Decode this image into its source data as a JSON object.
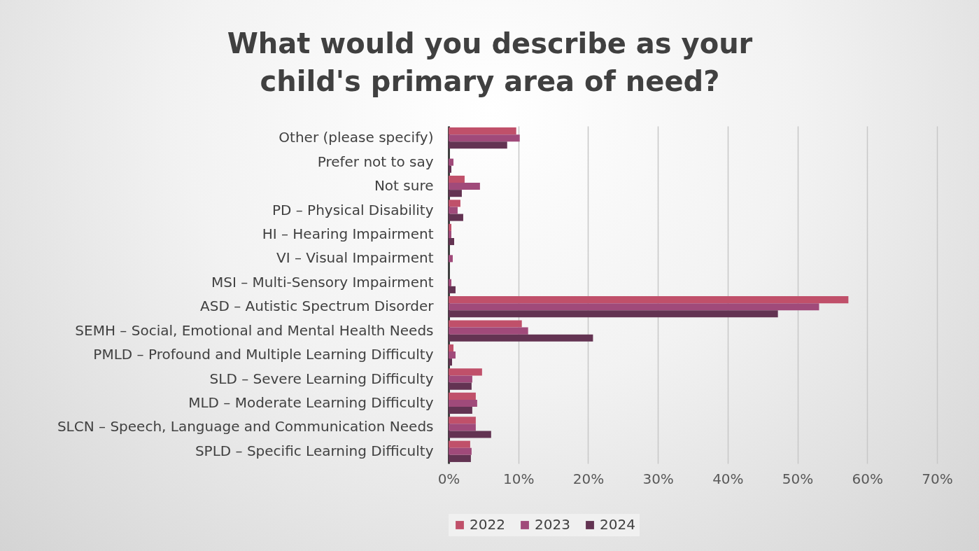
{
  "chart_data": {
    "type": "bar",
    "orientation": "horizontal",
    "title": "What would you describe as your child's primary area of need?",
    "categories": [
      "Other (please specify)",
      "Prefer not to say",
      "Not sure",
      "PD – Physical Disability",
      "HI – Hearing Impairment",
      "VI – Visual Impairment",
      "MSI – Multi-Sensory Impairment",
      "ASD – Autistic Spectrum Disorder",
      "SEMH – Social, Emotional and Mental Health Needs",
      "PMLD – Profound and Multiple Learning Difficulty",
      "SLD – Severe Learning Difficulty",
      "MLD – Moderate Learning Difficulty",
      "SLCN – Speech, Language and Communication Needs",
      "SPLD – Specific Learning Difficulty"
    ],
    "series": [
      {
        "name": "2022",
        "color": "#c0506a",
        "values": [
          9.7,
          0,
          2.3,
          1.7,
          0.4,
          0,
          0,
          57.3,
          10.5,
          0.7,
          4.8,
          3.9,
          3.9,
          3.1
        ]
      },
      {
        "name": "2023",
        "color": "#a04a7a",
        "values": [
          10.2,
          0.7,
          4.5,
          1.3,
          0.4,
          0.6,
          0.4,
          53.1,
          11.4,
          1.0,
          3.4,
          4.1,
          3.9,
          3.3
        ]
      },
      {
        "name": "2024",
        "color": "#633352",
        "values": [
          8.4,
          0.4,
          1.9,
          2.1,
          0.8,
          0,
          1.0,
          47.2,
          20.7,
          0.5,
          3.3,
          3.4,
          6.1,
          3.2
        ]
      }
    ],
    "xlim": [
      0,
      70
    ],
    "xticks": [
      {
        "value": 0,
        "label": "0%"
      },
      {
        "value": 10,
        "label": "10%"
      },
      {
        "value": 20,
        "label": "20%"
      },
      {
        "value": 30,
        "label": "30%"
      },
      {
        "value": 40,
        "label": "40%"
      },
      {
        "value": 50,
        "label": "50%"
      },
      {
        "value": 60,
        "label": "60%"
      },
      {
        "value": 70,
        "label": "70%"
      }
    ],
    "grid": "x",
    "legend": "bottom"
  }
}
